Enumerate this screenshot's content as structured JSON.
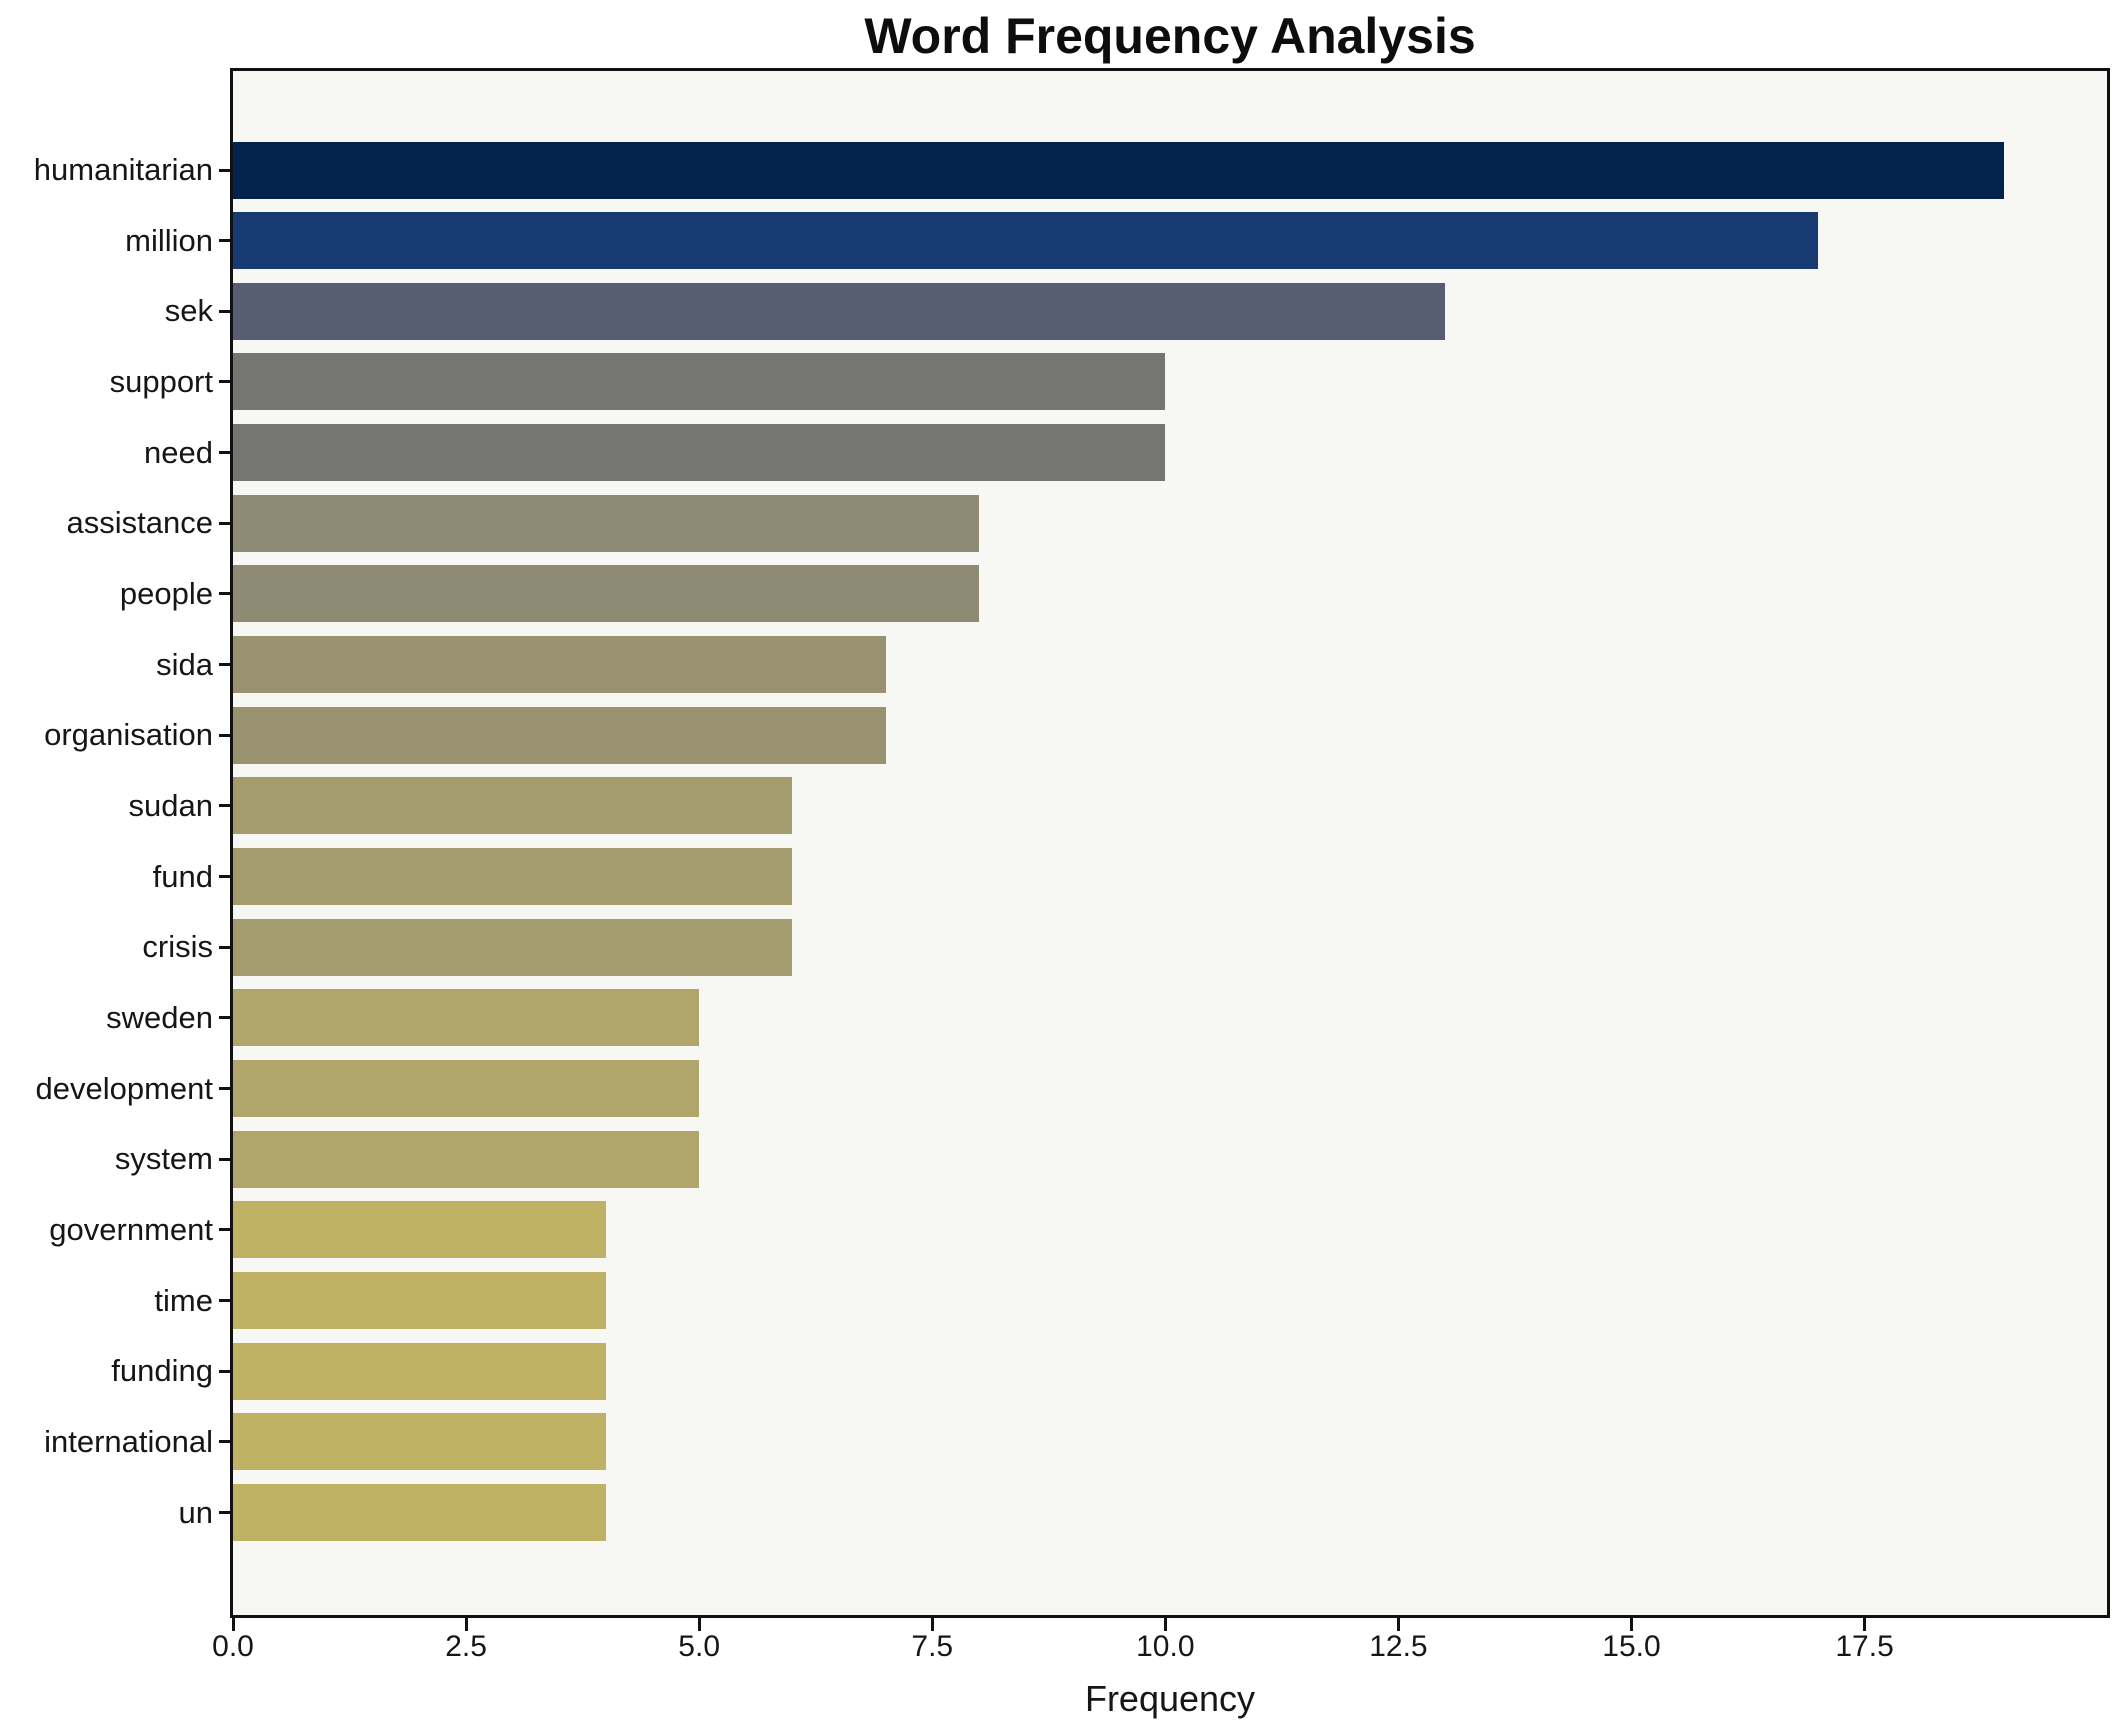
{
  "title": "Word Frequency Analysis",
  "chart_data": {
    "type": "bar",
    "orientation": "horizontal",
    "title": "Word Frequency Analysis",
    "xlabel": "Frequency",
    "ylabel": "",
    "grid": false,
    "legend": "none",
    "xlim": [
      0,
      20.1
    ],
    "xticks": [
      0,
      2.5,
      5,
      7.5,
      10,
      12.5,
      15,
      17.5
    ],
    "xtick_labels": [
      "0.0",
      "2.5",
      "5.0",
      "7.5",
      "10.0",
      "12.5",
      "15.0",
      "17.5"
    ],
    "categories": [
      "humanitarian",
      "million",
      "sek",
      "support",
      "need",
      "assistance",
      "people",
      "sida",
      "organisation",
      "sudan",
      "fund",
      "crisis",
      "sweden",
      "development",
      "system",
      "government",
      "time",
      "funding",
      "international",
      "un"
    ],
    "values": [
      19,
      17,
      13,
      10,
      10,
      8,
      8,
      7,
      7,
      6,
      6,
      6,
      5,
      5,
      5,
      4,
      4,
      4,
      4,
      4
    ],
    "bar_colors": [
      "#03234d",
      "#173a72",
      "#575e73",
      "#757672",
      "#757672",
      "#8e8a74",
      "#8e8a74",
      "#999270",
      "#999270",
      "#a59c6d",
      "#a59c6d",
      "#a59c6d",
      "#b0a56a",
      "#b0a56a",
      "#b0a56a",
      "#bfb265",
      "#bfb265",
      "#bfb265",
      "#bfb265",
      "#bfb265"
    ],
    "colors": {
      "plot_background": "#f7f7f4",
      "figure_background": "#ffffff",
      "spine": "#111111",
      "text": "#161616"
    }
  }
}
